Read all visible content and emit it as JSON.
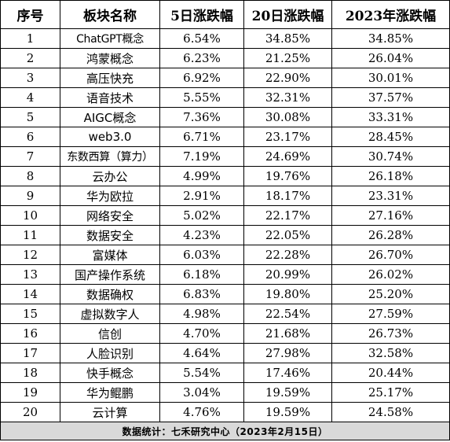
{
  "table": {
    "headers": [
      "序号",
      "板块名称",
      "5日涨跌幅",
      "20日涨跌幅",
      "2023年涨跌幅"
    ],
    "rows": [
      [
        "1",
        "ChatGPT概念",
        "6.54%",
        "34.85%",
        "34.85%"
      ],
      [
        "2",
        "鸿蒙概念",
        "6.23%",
        "21.25%",
        "26.04%"
      ],
      [
        "3",
        "高压快充",
        "6.92%",
        "22.90%",
        "30.01%"
      ],
      [
        "4",
        "语音技术",
        "5.55%",
        "32.31%",
        "37.57%"
      ],
      [
        "5",
        "AIGC概念",
        "7.36%",
        "30.08%",
        "33.31%"
      ],
      [
        "6",
        "web3.0",
        "6.71%",
        "23.17%",
        "28.45%"
      ],
      [
        "7",
        "东数西算（算力）",
        "7.19%",
        "24.69%",
        "30.74%"
      ],
      [
        "8",
        "云办公",
        "4.99%",
        "19.76%",
        "26.18%"
      ],
      [
        "9",
        "华为欧拉",
        "2.91%",
        "18.17%",
        "23.31%"
      ],
      [
        "10",
        "网络安全",
        "5.02%",
        "22.17%",
        "27.16%"
      ],
      [
        "11",
        "数据安全",
        "4.23%",
        "22.05%",
        "26.28%"
      ],
      [
        "12",
        "富媒体",
        "6.03%",
        "22.28%",
        "26.70%"
      ],
      [
        "13",
        "国产操作系统",
        "6.18%",
        "20.99%",
        "26.02%"
      ],
      [
        "14",
        "数据确权",
        "6.83%",
        "19.80%",
        "25.20%"
      ],
      [
        "15",
        "虚拟数字人",
        "4.98%",
        "22.54%",
        "27.59%"
      ],
      [
        "16",
        "信创",
        "4.70%",
        "21.68%",
        "26.73%"
      ],
      [
        "17",
        "人脸识别",
        "4.64%",
        "27.98%",
        "32.58%"
      ],
      [
        "18",
        "快手概念",
        "5.54%",
        "17.46%",
        "20.44%"
      ],
      [
        "19",
        "华为鲲鹏",
        "3.04%",
        "19.59%",
        "25.17%"
      ],
      [
        "20",
        "云计算",
        "4.76%",
        "19.59%",
        "24.58%"
      ]
    ],
    "footer": "数据统计：七禾研究中心（2023年2月15日）"
  }
}
